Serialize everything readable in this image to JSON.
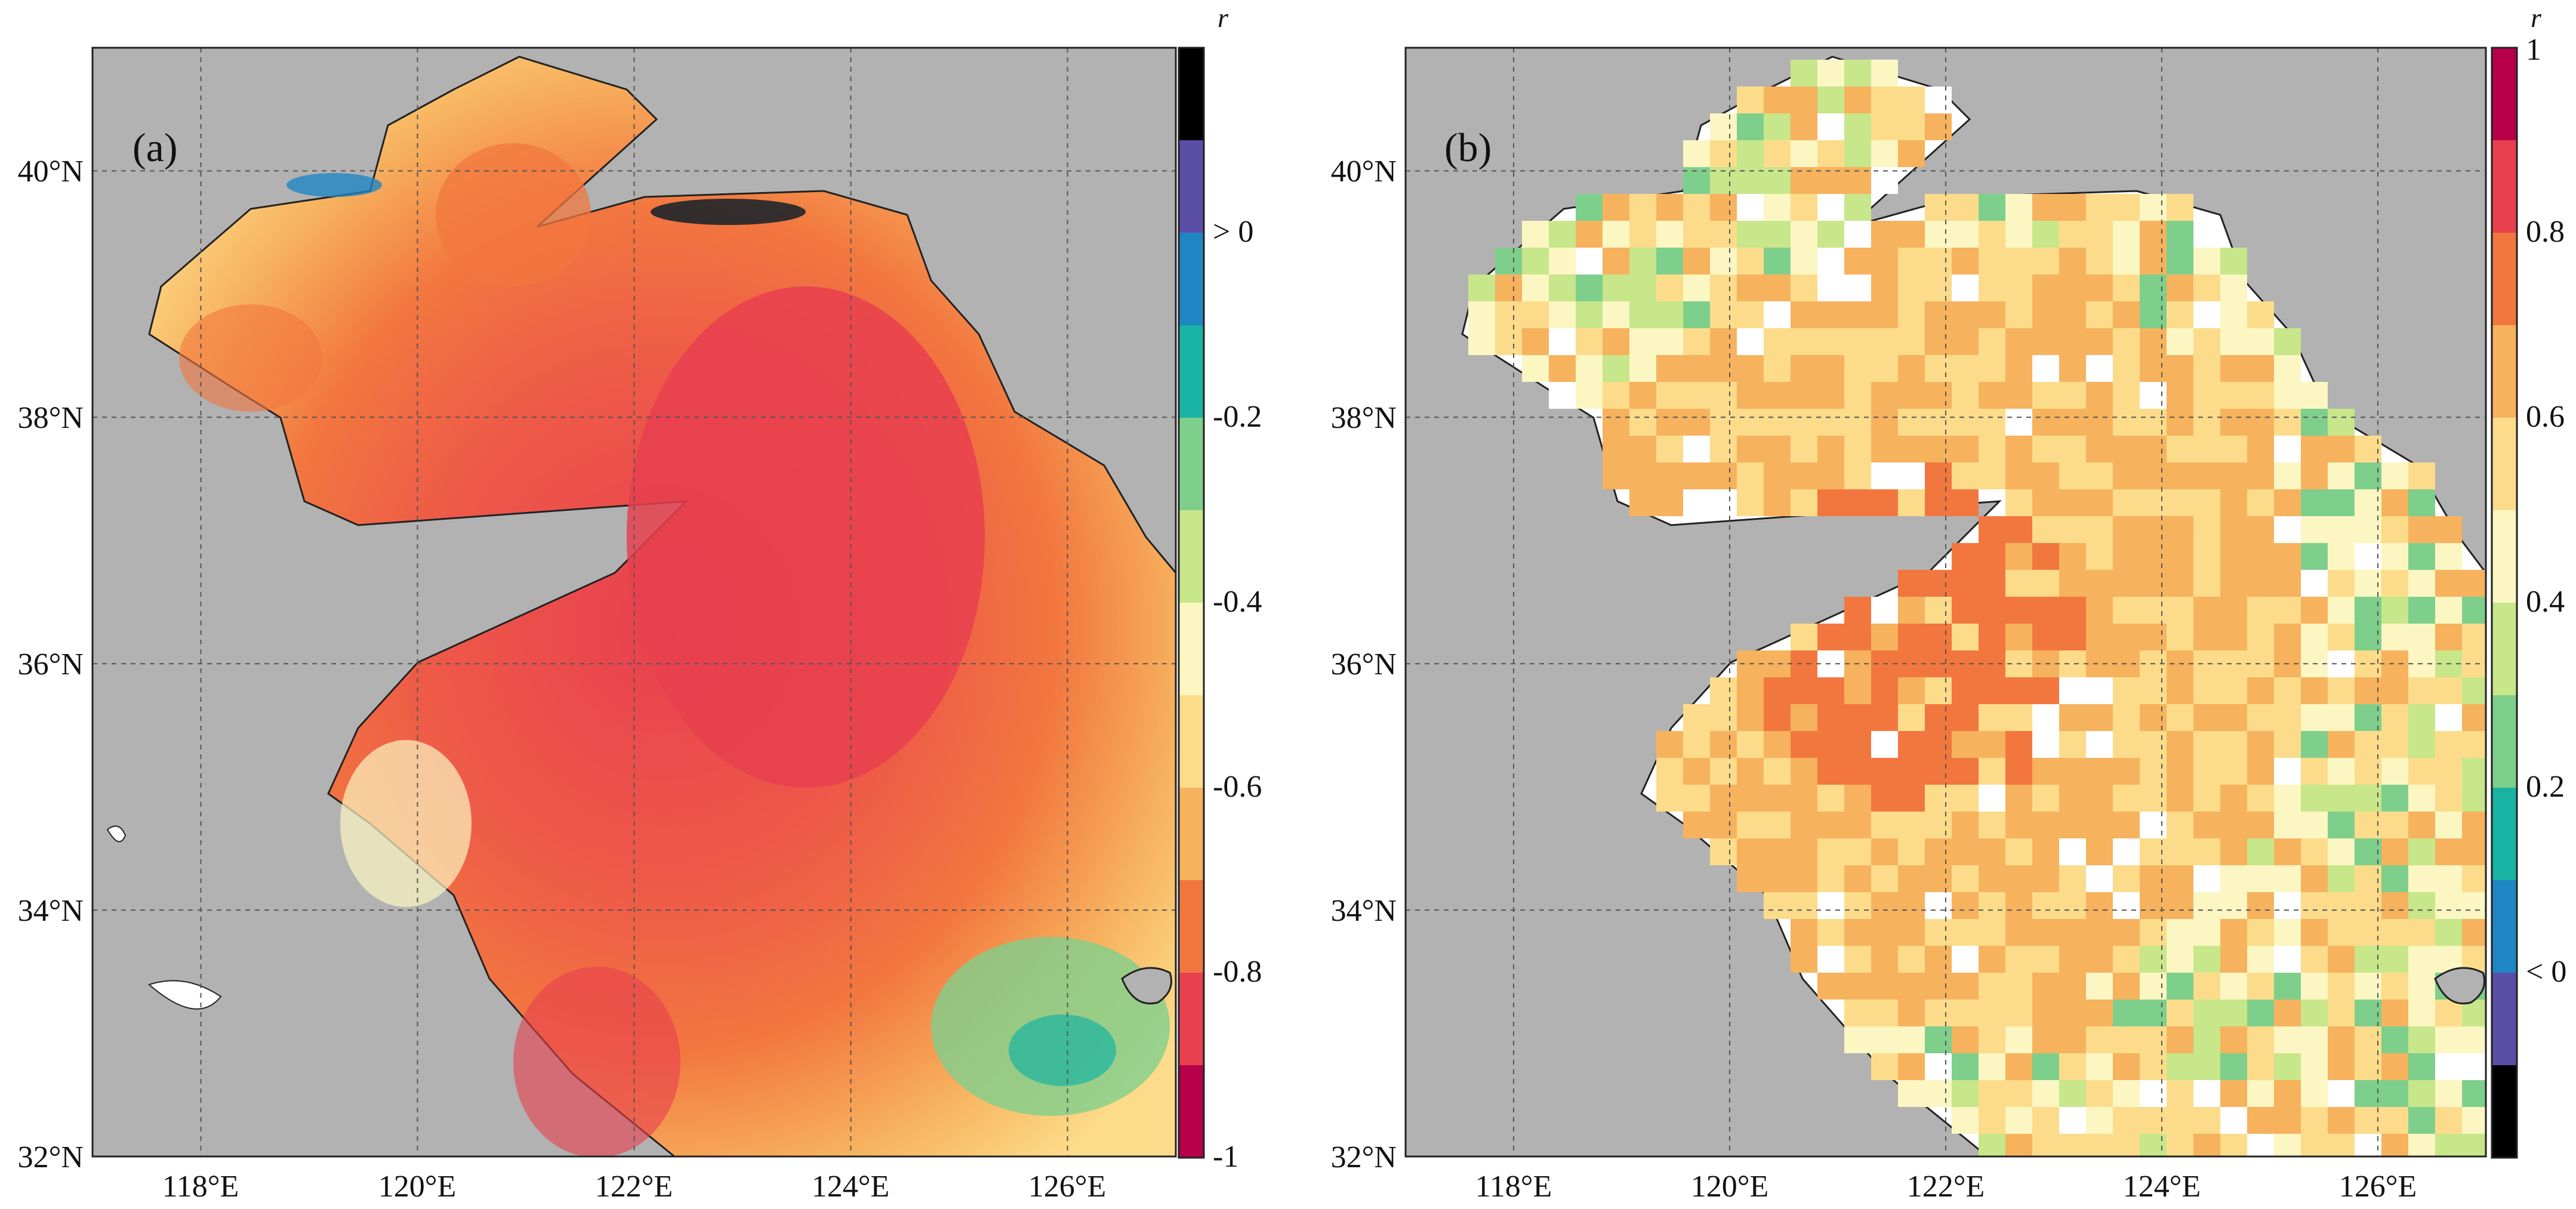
{
  "panels": [
    {
      "label": "(a)",
      "lat_ticks": [
        "32°N",
        "34°N",
        "36°N",
        "38°N",
        "40°N"
      ],
      "lon_ticks": [
        "118°E",
        "120°E",
        "122°E",
        "124°E",
        "126°E"
      ],
      "lon_range": [
        117.0,
        127.0
      ],
      "lat_range": [
        32.0,
        41.0
      ],
      "colorbar": {
        "title": "r",
        "tick_labels": [
          "> 0",
          "-0.2",
          "-0.4",
          "-0.6",
          "-0.8",
          "-1"
        ],
        "colors_top_to_bottom": [
          "#000000",
          "#5a4ea6",
          "#1f86c4",
          "#19b3a3",
          "#7fcf8c",
          "#c8e68a",
          "#fbf6c2",
          "#fcdc8a",
          "#f7b25e",
          "#f2773f",
          "#e8404f",
          "#b8004a"
        ]
      }
    },
    {
      "label": "(b)",
      "lat_ticks": [
        "32°N",
        "34°N",
        "36°N",
        "38°N",
        "40°N"
      ],
      "lon_ticks": [
        "118°E",
        "120°E",
        "122°E",
        "124°E",
        "126°E"
      ],
      "lon_range": [
        117.0,
        127.0
      ],
      "lat_range": [
        32.0,
        41.0
      ],
      "colorbar": {
        "title": "r",
        "tick_labels": [
          "1",
          "0.8",
          "0.6",
          "0.4",
          "0.2",
          "< 0"
        ],
        "colors_top_to_bottom": [
          "#b8004a",
          "#e8404f",
          "#f2773f",
          "#f7b25e",
          "#fcdc8a",
          "#fbf6c2",
          "#c8e68a",
          "#7fcf8c",
          "#19b3a3",
          "#1f86c4",
          "#5a4ea6",
          "#000000"
        ]
      }
    }
  ],
  "colors": {
    "land": "#b2b2b2",
    "nodata_sea": "#ffffff",
    "grid": "#555555"
  }
}
